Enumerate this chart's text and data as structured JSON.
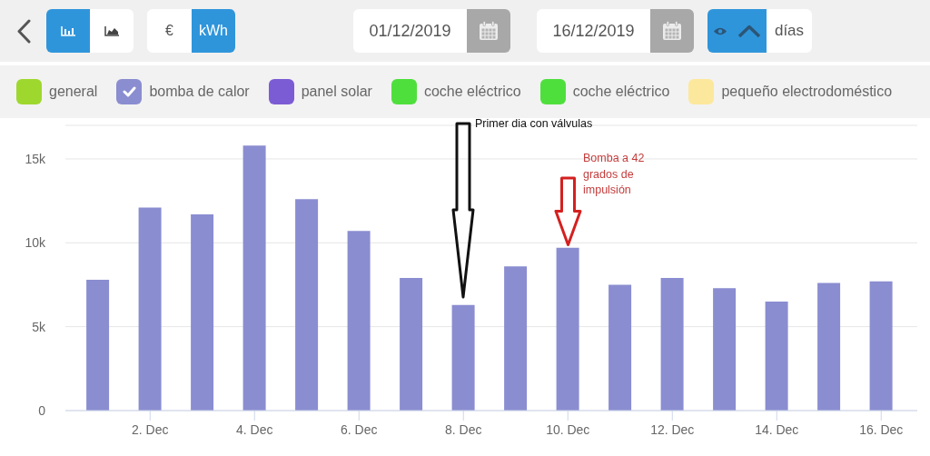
{
  "chart_data": {
    "type": "bar",
    "categories": [
      null,
      "2. Dec",
      null,
      "4. Dec",
      null,
      "6. Dec",
      null,
      "8. Dec",
      null,
      "10. Dec",
      null,
      "12. Dec",
      null,
      "14. Dec",
      null,
      "16. Dec"
    ],
    "series": [
      {
        "name": "general",
        "color": "#9ed82f",
        "values": [
          null,
          null,
          null,
          null,
          null,
          null,
          null,
          null,
          null,
          null,
          null,
          null,
          null,
          null,
          null,
          null
        ]
      },
      {
        "name": "bomba de calor",
        "color": "#8a8dd0",
        "values": [
          7800,
          12100,
          11700,
          15800,
          12600,
          10700,
          7900,
          6300,
          8600,
          9700,
          7500,
          7900,
          7300,
          6500,
          7600,
          7700
        ]
      },
      {
        "name": "panel solar",
        "color": "#7c5cd4",
        "values": [
          null,
          null,
          null,
          null,
          null,
          null,
          null,
          null,
          null,
          null,
          null,
          null,
          null,
          null,
          null,
          null
        ]
      },
      {
        "name": "coche eléctrico",
        "color": "#4fdf3d",
        "values": [
          null,
          null,
          null,
          null,
          null,
          null,
          null,
          null,
          null,
          null,
          null,
          null,
          null,
          null,
          null,
          null
        ]
      },
      {
        "name": "coche eléctrico",
        "color": "#4fdf3d",
        "values": [
          null,
          null,
          null,
          null,
          null,
          null,
          null,
          null,
          null,
          null,
          null,
          null,
          null,
          null,
          null,
          null
        ]
      },
      {
        "name": "pequeño electrodoméstico",
        "color": "#fce89c",
        "values": [
          null,
          null,
          null,
          null,
          null,
          null,
          null,
          null,
          null,
          null,
          null,
          null,
          null,
          null,
          null,
          null
        ]
      }
    ],
    "ylim": [
      0,
      17000
    ],
    "yticks": [
      0,
      {
        "value": 5000,
        "label": "5k"
      },
      {
        "value": 10000,
        "label": "10k"
      },
      {
        "value": 15000,
        "label": "15k"
      }
    ],
    "grid": "y",
    "legend": "top",
    "annotations": [
      "Primer dia con válvulas",
      "Bomba a 42 grados de impulsión",
      "€",
      "kWh",
      "01/12/2019",
      "16/12/2019",
      "días"
    ]
  }
}
